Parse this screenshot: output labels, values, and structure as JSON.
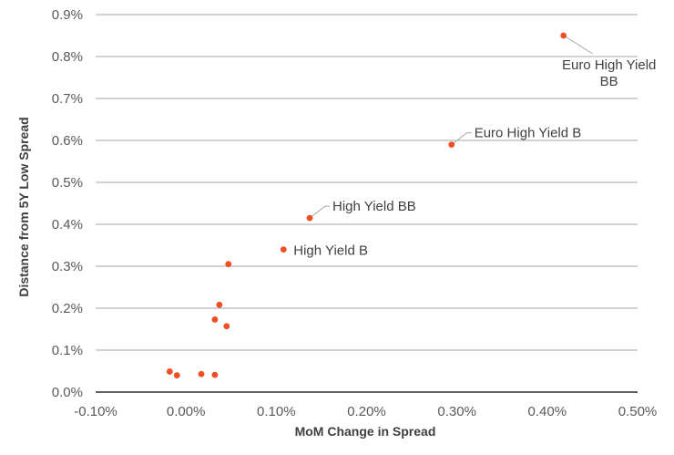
{
  "chart_data": {
    "type": "scatter",
    "title": "",
    "xlabel": "MoM Change in Spread",
    "ylabel": "Distance from 5Y Low Spread",
    "xlim": [
      -0.1,
      0.5
    ],
    "ylim": [
      0.0,
      0.9
    ],
    "x_ticks": [
      "-0.10%",
      "0.00%",
      "0.10%",
      "0.20%",
      "0.30%",
      "0.40%",
      "0.50%"
    ],
    "y_ticks": [
      "0.0%",
      "0.1%",
      "0.2%",
      "0.3%",
      "0.4%",
      "0.5%",
      "0.6%",
      "0.7%",
      "0.8%",
      "0.9%"
    ],
    "grid": "horizontal",
    "marker_color": "#f04e23",
    "points": [
      {
        "x": 0.418,
        "y": 0.85,
        "label": "Euro High Yield BB",
        "label_lines": [
          "Euro High Yield",
          "BB"
        ]
      },
      {
        "x": 0.294,
        "y": 0.59,
        "label": "Euro High Yield B",
        "label_lines": [
          "Euro High Yield B"
        ]
      },
      {
        "x": 0.137,
        "y": 0.415,
        "label": "High Yield BB",
        "label_lines": [
          "High Yield BB"
        ]
      },
      {
        "x": 0.108,
        "y": 0.34,
        "label": "High Yield B",
        "label_lines": [
          "High Yield B"
        ]
      },
      {
        "x": 0.047,
        "y": 0.305
      },
      {
        "x": 0.037,
        "y": 0.208
      },
      {
        "x": 0.032,
        "y": 0.173
      },
      {
        "x": 0.045,
        "y": 0.157
      },
      {
        "x": -0.018,
        "y": 0.049
      },
      {
        "x": -0.01,
        "y": 0.04
      },
      {
        "x": 0.017,
        "y": 0.043
      },
      {
        "x": 0.032,
        "y": 0.041
      }
    ]
  }
}
